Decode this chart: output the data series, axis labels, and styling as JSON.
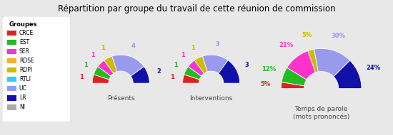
{
  "title": "Répartition par groupe du travail de cette réunion de commission",
  "groups": [
    "CRCE",
    "EST",
    "SER",
    "RDSE",
    "RDPI",
    "RTLI",
    "UC",
    "LR",
    "NI"
  ],
  "colors": [
    "#dd2222",
    "#22bb22",
    "#ff33cc",
    "#ffaa33",
    "#ccbb00",
    "#33ccff",
    "#9999ee",
    "#1111aa",
    "#aaaaaa"
  ],
  "presents": [
    1,
    1,
    1,
    0,
    1,
    0,
    4,
    2,
    0
  ],
  "interventions": [
    1,
    1,
    1,
    0,
    1,
    0,
    3,
    3,
    0
  ],
  "temps_parole": [
    5,
    12,
    21,
    0,
    5,
    0,
    30,
    24,
    0
  ],
  "chart_titles": [
    "Présents",
    "Interventions",
    "Temps de parole\n(mots prononcés)"
  ],
  "background_color": "#e8e8e8",
  "inner_r": 0.42,
  "outer_r": 0.98
}
